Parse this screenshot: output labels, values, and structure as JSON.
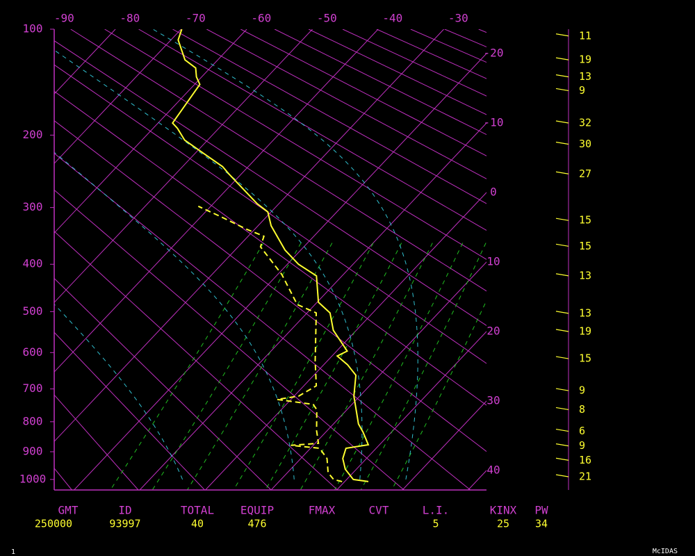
{
  "chart_data": {
    "type": "skewt",
    "ylim": [
      100,
      1040
    ],
    "yticks": [
      100,
      200,
      300,
      400,
      500,
      600,
      700,
      800,
      900,
      1000
    ],
    "xticks": [
      -90,
      -80,
      -70,
      -60,
      -50,
      -40,
      -30
    ],
    "right_ticks": [
      -20,
      -10,
      0,
      10,
      20,
      30,
      40
    ],
    "grid_color": "#c030c0",
    "series": [
      {
        "color": "#ffff30",
        "dash": false,
        "p": [
          1008,
          1000,
          962,
          924,
          888,
          876,
          834,
          807,
          721,
          661,
          632,
          609,
          596,
          544,
          503,
          479,
          423,
          400,
          373,
          330,
          307,
          294,
          250,
          240,
          224,
          206,
          192,
          186,
          146,
          139,
          131,
          124,
          108,
          100
        ],
        "values": [
          23.6,
          21.0,
          18.3,
          16.4,
          15.4,
          18.3,
          15.7,
          13.8,
          9.1,
          6.4,
          3.6,
          0.8,
          1.6,
          -3.5,
          -6.5,
          -9.8,
          -13.9,
          -18.3,
          -22.4,
          -28.0,
          -30.5,
          -33.3,
          -41.9,
          -43.9,
          -48.3,
          -53.5,
          -56.3,
          -57.8,
          -59.2,
          -60.8,
          -62.2,
          -65.0,
          -68.9,
          -69.9
        ]
      },
      {
        "color": "#ffff30",
        "dash": true,
        "p": [
          1008,
          1000,
          975,
          924,
          888,
          878,
          871,
          829,
          762,
          746,
          731,
          721,
          691,
          623,
          503,
          484,
          420,
          367,
          348,
          336,
          315,
          298
        ],
        "values": [
          19.6,
          18.0,
          16.2,
          14.0,
          11.4,
          6.6,
          10.5,
          8.4,
          5.4,
          4.1,
          -2.1,
          0.7,
          1.9,
          -1.8,
          -8.6,
          -12.7,
          -19.4,
          -26.6,
          -27.6,
          -31.2,
          -36.9,
          -41.9
        ]
      }
    ],
    "wind": {
      "p": [
        105,
        124,
        139,
        152,
        186,
        211,
        250,
        321,
        366,
        423,
        504,
        547,
        616,
        705,
        762,
        831,
        880,
        930,
        990
      ],
      "values": [
        11,
        19,
        13,
        9,
        32,
        30,
        27,
        15,
        15,
        13,
        13,
        19,
        15,
        9,
        8,
        6,
        9,
        16,
        21
      ]
    }
  },
  "footer": {
    "labels": [
      "GMT",
      "ID",
      "TOTAL",
      "EQUIP",
      "FMAX",
      "CVT",
      "L.I.",
      "KINX",
      "PW"
    ],
    "values": [
      250000,
      93997,
      40,
      476,
      null,
      null,
      5,
      25,
      34
    ]
  },
  "corner": "1",
  "brand": "McIDAS"
}
